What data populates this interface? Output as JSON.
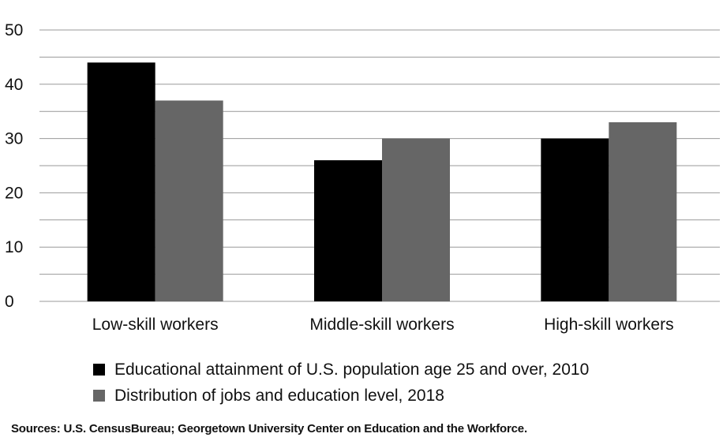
{
  "chart_data": {
    "type": "bar",
    "categories": [
      "Low-skill workers",
      "Middle-skill workers",
      "High-skill workers"
    ],
    "series": [
      {
        "name": "Educational attainment of U.S. population age 25 and over, 2010",
        "values": [
          44,
          26,
          30
        ],
        "color": "#000000"
      },
      {
        "name": "Distribution of jobs and education level, 2018",
        "values": [
          37,
          30,
          33
        ],
        "color": "#666666"
      }
    ],
    "yticks": [
      0,
      10,
      20,
      30,
      40,
      50
    ],
    "ylim": [
      0,
      50
    ],
    "minor_grid_step": 5,
    "grid": true,
    "legend_position": "bottom",
    "title": "",
    "xlabel": "",
    "ylabel": ""
  },
  "source_text": "Sources: U.S. CensusBureau; Georgetown University Center on Education and the Workforce."
}
